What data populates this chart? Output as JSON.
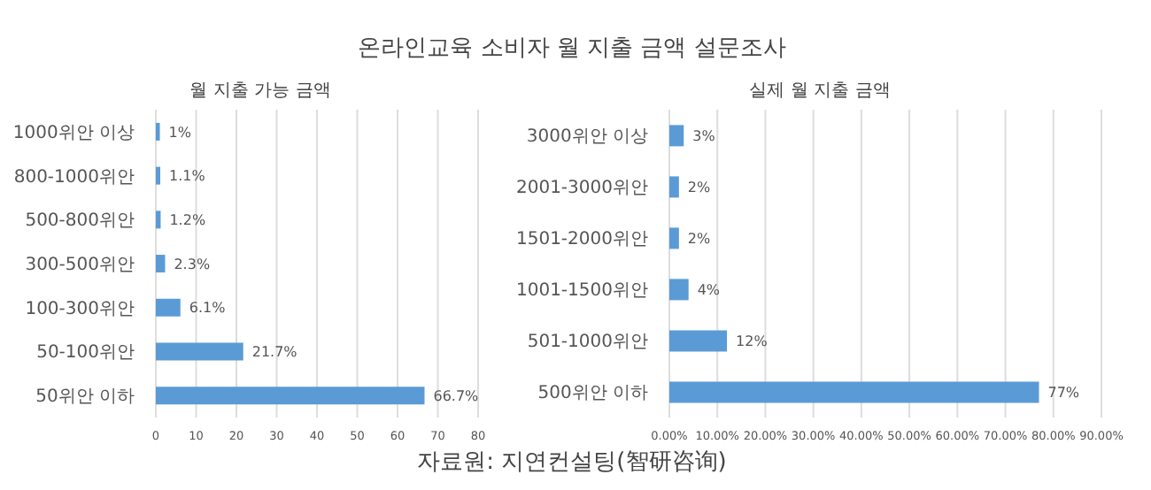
{
  "chart_data": [
    {
      "type": "other",
      "title": "온라인교육 소비자 월 지출 금액 설문조사",
      "annotations": [
        "자료원: 지연컨설팅(智研咨询)"
      ]
    },
    {
      "type": "bar",
      "orientation": "horizontal",
      "title": "월 지출 가능 금액",
      "categories": [
        "1000위안 이상",
        "800-1000위안",
        "500-800위안",
        "300-500위안",
        "100-300위안",
        "50-100위안",
        "50위안 이하"
      ],
      "values": [
        1,
        1.1,
        1.2,
        2.3,
        6.1,
        21.7,
        66.7
      ],
      "value_labels": [
        "1%",
        "1.1%",
        "1.2%",
        "2.3%",
        "6.1%",
        "21.7%",
        "66.7%"
      ],
      "color": "#5b9bd5",
      "xlim": [
        0,
        80
      ],
      "xticks": [
        0,
        10,
        20,
        30,
        40,
        50,
        60,
        70,
        80
      ],
      "grid": "x"
    },
    {
      "type": "bar",
      "orientation": "horizontal",
      "title": "실제 월 지출 금액",
      "categories": [
        "3000위안 이상",
        "2001-3000위안",
        "1501-2000위안",
        "1001-1500위안",
        "501-1000위안",
        "500위안 이하"
      ],
      "values": [
        3,
        2,
        2,
        4,
        12,
        77
      ],
      "value_labels": [
        "3%",
        "2%",
        "2%",
        "4%",
        "12%",
        "77%"
      ],
      "color": "#5b9bd5",
      "xlim": [
        0,
        90
      ],
      "xticks": [
        {
          "value": 0,
          "label": "0.00%"
        },
        {
          "value": 10,
          "label": "10.00%"
        },
        {
          "value": 20,
          "label": "20.00%"
        },
        {
          "value": 30,
          "label": "30.00%"
        },
        {
          "value": 40,
          "label": "40.00%"
        },
        {
          "value": 50,
          "label": "50.00%"
        },
        {
          "value": 60,
          "label": "60.00%"
        },
        {
          "value": 70,
          "label": "70.00%"
        },
        {
          "value": 80,
          "label": "80.00%"
        },
        {
          "value": 90,
          "label": "90.00%"
        }
      ],
      "grid": "x"
    }
  ]
}
